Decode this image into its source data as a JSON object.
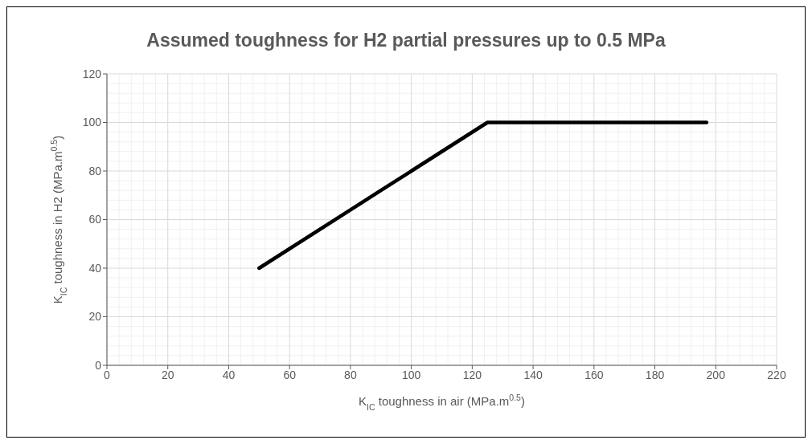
{
  "chart_data": {
    "type": "line",
    "title": "Assumed toughness for H2 partial pressures up to 0.5 MPa",
    "xlabel": "K$_{IC}$ toughness in air (MPa.m$^{0.5}$)",
    "ylabel": "K$_{IC}$ toughness in H2 (MPa.m$^{0.5}$)",
    "x": [
      50,
      80,
      90,
      100,
      125,
      197
    ],
    "series": [
      {
        "color": "#000000",
        "values": [
          40,
          64,
          72,
          80,
          100,
          100
        ]
      }
    ],
    "xlim": [
      0,
      220
    ],
    "xticks": [
      0,
      20,
      40,
      60,
      80,
      100,
      120,
      140,
      160,
      180,
      200,
      220
    ],
    "ylim": [
      0,
      120
    ],
    "yticks": [
      0,
      20,
      40,
      60,
      80,
      100,
      120
    ],
    "grid": true,
    "marker": "none",
    "line_style": "solid"
  }
}
